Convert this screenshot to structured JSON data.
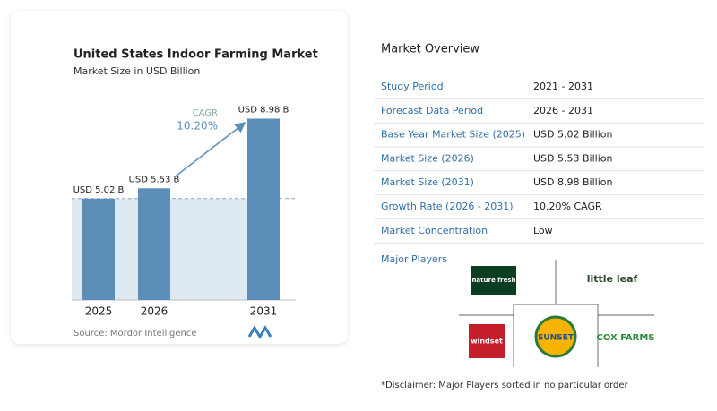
{
  "chart_data": {
    "type": "bar",
    "title": "United States Indoor Farming Market",
    "subtitle": "Market Size in USD Billion",
    "categories": [
      "2025",
      "2026",
      "2031"
    ],
    "values": [
      5.02,
      5.53,
      8.98
    ],
    "value_labels": [
      "USD 5.02 B",
      "USD 5.53 B",
      "USD 8.98 B"
    ],
    "color": "#5b8fba",
    "ylim": [
      0,
      9
    ],
    "grid": false,
    "annotation": {
      "label": "CAGR",
      "value": "10.20%"
    },
    "source": "Source: Mordor Intelligence"
  },
  "overview": {
    "title": "Market Overview",
    "rows": [
      [
        "Study Period",
        "2021 - 2031"
      ],
      [
        "Forecast Data Period",
        "2026 - 2031"
      ],
      [
        "Base Year Market Size (2025)",
        "USD 5.02 Billion"
      ],
      [
        "Market Size (2026)",
        "USD 5.53 Billion"
      ],
      [
        "Market Size (2031)",
        "USD 8.98 Billion"
      ],
      [
        "Growth Rate (2026 - 2031)",
        "10.20% CAGR"
      ],
      [
        "Market Concentration",
        "Low"
      ]
    ]
  },
  "players": {
    "title": "Major Players",
    "names": [
      "nature fresh",
      "little leaf",
      "windset",
      "SUNSET",
      "COX FARMS"
    ]
  },
  "disclaimer": "*Disclaimer: Major Players sorted in no particular order"
}
